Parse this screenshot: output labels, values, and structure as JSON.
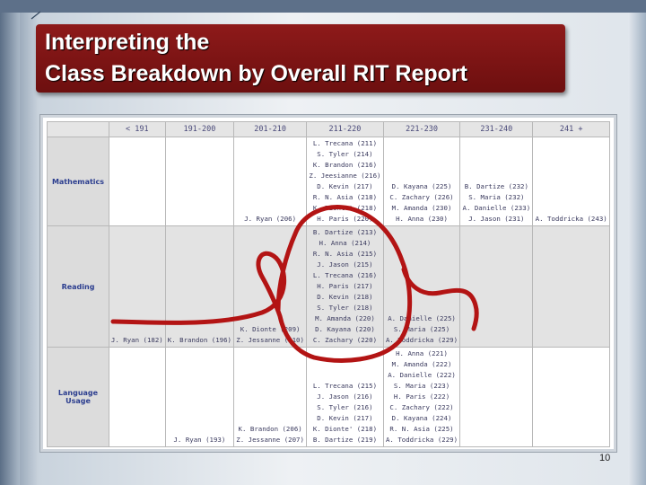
{
  "title": {
    "line1": "Interpreting the",
    "line2": "Class Breakdown by Overall RIT Report"
  },
  "page_number": "10",
  "annotation_color": "#b31414",
  "columns": [
    "< 191",
    "191-200",
    "201-210",
    "211-220",
    "221-230",
    "231-240",
    "241 +"
  ],
  "rows": [
    {
      "subject": "Mathematics",
      "cells": [
        [],
        [],
        [
          "J. Ryan (206)"
        ],
        [
          "L. Trecana (211)",
          "S. Tyler (214)",
          "K. Brandon (216)",
          "Z. Jeesianne (216)",
          "D. Kevin (217)",
          "R. N. Asia (218)",
          "K. Dionte' (218)",
          "H. Paris (220)"
        ],
        [
          "D. Kayana (225)",
          "C. Zachary (226)",
          "M. Amanda (230)",
          "H. Anna (230)"
        ],
        [
          "B. Dartize (232)",
          "S. Maria (232)",
          "A. Danielle (233)",
          "J. Jason (231)"
        ],
        [
          "A. Toddricka (243)"
        ]
      ]
    },
    {
      "subject": "Reading",
      "cells": [
        [
          "J. Ryan (182)"
        ],
        [
          "K. Brandon (196)"
        ],
        [
          "K. Dionte (209)",
          "Z. Jessanne (210)"
        ],
        [
          "B. Dartize (213)",
          "H. Anna (214)",
          "R. N. Asia (215)",
          "J. Jason (215)",
          "L. Trecana (216)",
          "H. Paris (217)",
          "D. Kevin (218)",
          "S. Tyler (218)",
          "M. Amanda (220)",
          "D. Kayana (220)",
          "C. Zachary (220)"
        ],
        [
          "A. Danielle (225)",
          "S. Maria (225)",
          "A. Toddricka (229)"
        ],
        [],
        []
      ]
    },
    {
      "subject": "Language Usage",
      "cells": [
        [],
        [
          "J. Ryan (193)"
        ],
        [
          "K. Brandon (206)",
          "Z. Jessanne (207)"
        ],
        [
          "L. Trecana (215)",
          "J. Jason (216)",
          "S. Tyler (216)",
          "D. Kevin (217)",
          "K. Dionte' (218)",
          "B. Dartize (219)"
        ],
        [
          "H. Anna (221)",
          "M. Amanda (222)",
          "A. Danielle (222)",
          "S. Maria (223)",
          "H. Paris (222)",
          "C. Zachary (222)",
          "D. Kayana (224)",
          "R. N. Asia (225)",
          "A. Toddricka (229)"
        ],
        [],
        []
      ]
    }
  ]
}
